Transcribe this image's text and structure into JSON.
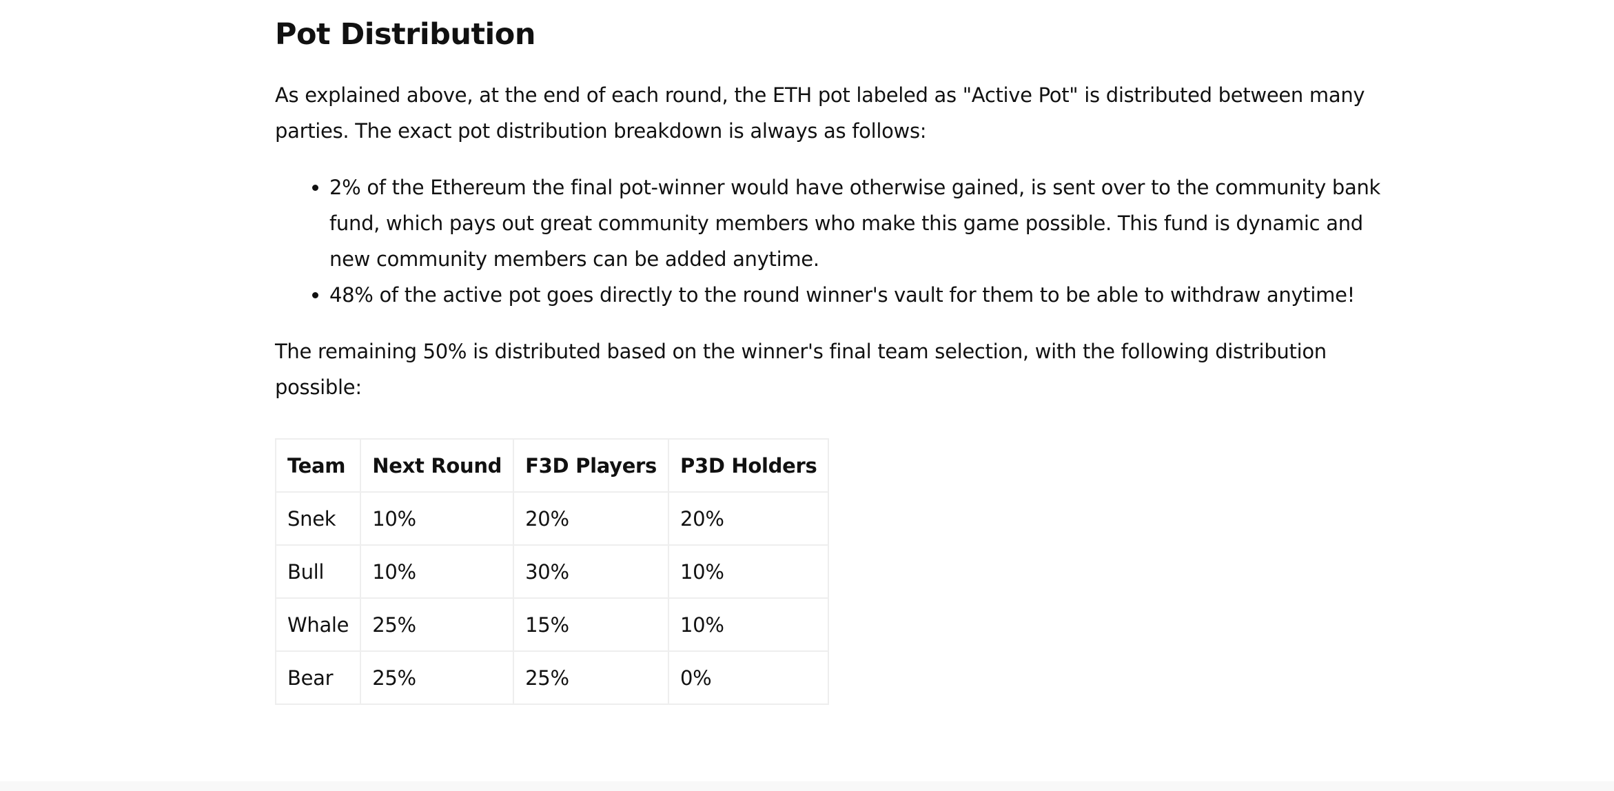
{
  "heading": "Pot Distribution",
  "intro": "As explained above, at the end of each round, the ETH pot labeled as \"Active Pot\" is distributed between many parties. The exact pot distribution breakdown is always as follows:",
  "bullets": [
    "2% of the Ethereum the final pot-winner would have otherwise gained, is sent over to the community bank fund, which pays out great community members who make this game possible. This fund is dynamic and new community members can be added anytime.",
    "48% of the active pot goes directly to the round winner's vault for them to be able to withdraw anytime!"
  ],
  "remaining": "The remaining 50% is distributed based on the winner's final team selection, with the following distribution possible:",
  "table": {
    "headers": [
      "Team",
      "Next Round",
      "F3D Players",
      "P3D Holders"
    ],
    "rows": [
      [
        "Snek",
        "10%",
        "20%",
        "20%"
      ],
      [
        "Bull",
        "10%",
        "30%",
        "10%"
      ],
      [
        "Whale",
        "25%",
        "15%",
        "10%"
      ],
      [
        "Bear",
        "25%",
        "25%",
        "0%"
      ]
    ]
  }
}
